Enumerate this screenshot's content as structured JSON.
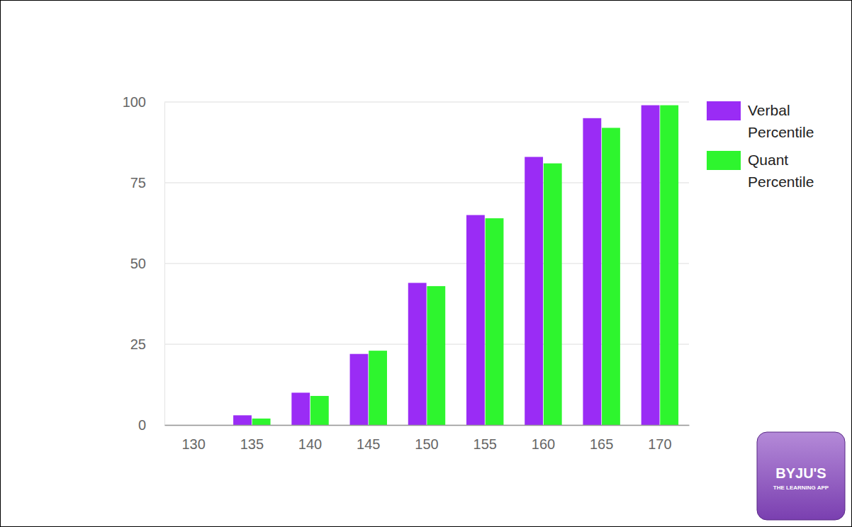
{
  "chart_data": {
    "type": "bar",
    "categories": [
      "130",
      "135",
      "140",
      "145",
      "150",
      "155",
      "160",
      "165",
      "170"
    ],
    "series": [
      {
        "name": "Verbal Percentile",
        "color": "#9a2cf5",
        "values": [
          0,
          3,
          10,
          22,
          44,
          65,
          83,
          95,
          99
        ]
      },
      {
        "name": "Quant Percentile",
        "color": "#2ef52e",
        "values": [
          0,
          2,
          9,
          23,
          43,
          64,
          81,
          92,
          99
        ]
      }
    ],
    "ylim": [
      0,
      100
    ],
    "yticks": [
      0,
      25,
      50,
      75,
      100
    ],
    "grid": true,
    "legend": "right",
    "annotations": [
      "BYJU'S",
      "THE LEARNING APP"
    ]
  }
}
